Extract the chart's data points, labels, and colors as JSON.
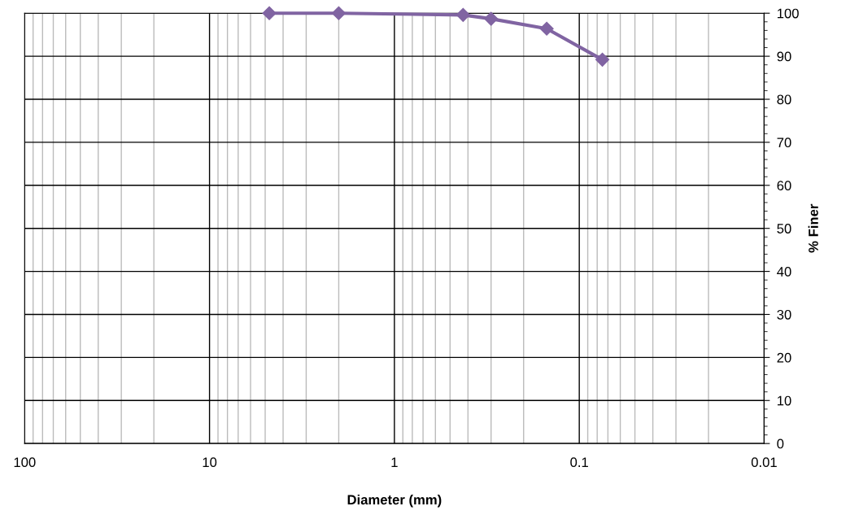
{
  "chart_data": {
    "type": "line",
    "xlabel": "Diameter (mm)",
    "ylabel": "% Finer",
    "log": "x",
    "x": [
      4.75,
      2,
      0.425,
      0.3,
      0.15,
      0.075
    ],
    "series": [
      {
        "color": "#8064a2",
        "values": [
          100,
          100,
          99.6,
          98.7,
          96.4,
          89.2
        ]
      }
    ],
    "xlim": [
      100,
      0.01
    ],
    "xticks": [
      100,
      10,
      1,
      0.1,
      0.01
    ],
    "ylim": [
      0,
      100
    ],
    "yticks": [
      0,
      10,
      20,
      30,
      40,
      50,
      60,
      70,
      80,
      90,
      100
    ],
    "grid": true,
    "marker": "diamond",
    "line_style": "solid"
  }
}
